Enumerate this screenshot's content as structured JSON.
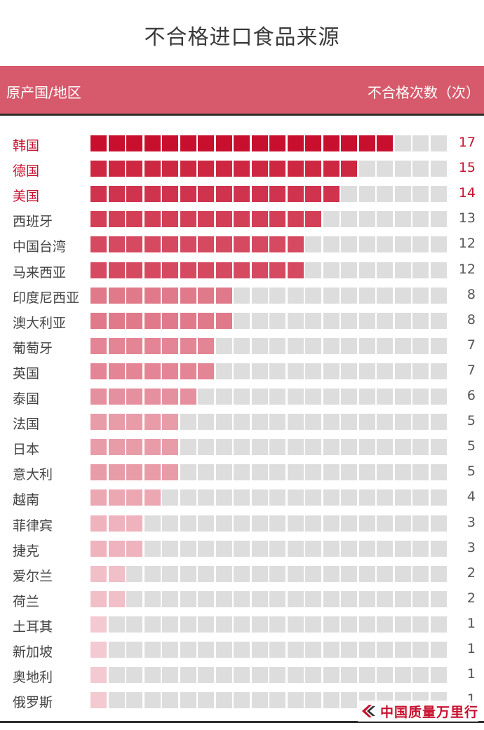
{
  "page_title": "不合格进口食品来源",
  "header": {
    "left_label": "原产国/地区",
    "right_label": "不合格次数（次）",
    "background_color": "#d65a6b"
  },
  "logo": {
    "text": "中国质量万里行",
    "icon": "brand-arrow-icon",
    "color": "#c8102e"
  },
  "chart_data": {
    "type": "bar",
    "orientation": "horizontal",
    "style": "unit-square-waffle",
    "title": "不合格进口食品来源",
    "xlabel": "不合格次数（次）",
    "ylabel": "原产国/地区",
    "xlim": [
      0,
      20
    ],
    "grid": false,
    "categories": [
      "韩国",
      "德国",
      "美国",
      "西班牙",
      "中国台湾",
      "马来西亚",
      "印度尼西亚",
      "澳大利亚",
      "葡萄牙",
      "英国",
      "泰国",
      "法国",
      "日本",
      "意大利",
      "越南",
      "菲律宾",
      "捷克",
      "爱尔兰",
      "荷兰",
      "土耳其",
      "新加坡",
      "奥地利",
      "俄罗斯"
    ],
    "values": [
      17,
      15,
      14,
      13,
      12,
      12,
      8,
      8,
      7,
      7,
      6,
      5,
      5,
      5,
      4,
      3,
      3,
      2,
      2,
      1,
      1,
      1,
      1
    ],
    "highlighted_top": 3,
    "highlight_color": "#c8102e",
    "empty_color": "#dddddd",
    "color_scale": [
      "#c8102e",
      "#ffffff"
    ]
  }
}
